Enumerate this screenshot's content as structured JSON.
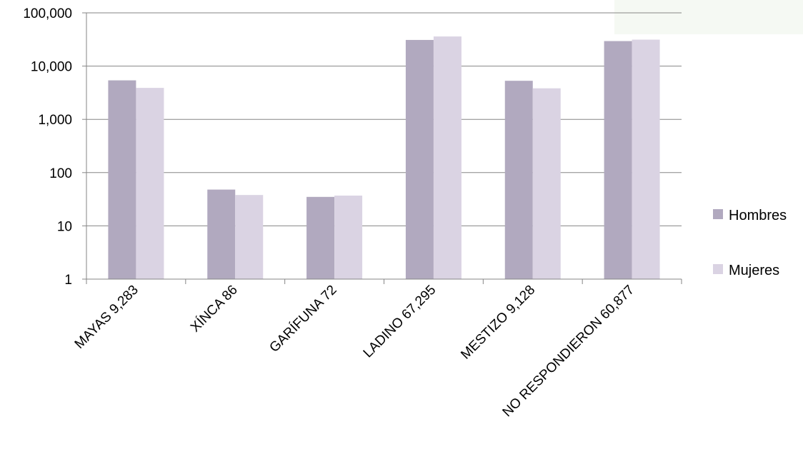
{
  "chart_data": {
    "type": "bar",
    "scale": "log",
    "ylim": [
      1,
      100000
    ],
    "y_ticks": [
      "100,000",
      "10,000",
      "1,000",
      "100",
      "10",
      "1"
    ],
    "y_tick_values": [
      100000,
      10000,
      1000,
      100,
      10,
      1
    ],
    "categories": [
      "MAYAS  9,283",
      "XÍNCA  86",
      "GARÍFUNA  72",
      "LADINO  67,295",
      "MESTIZO  9,128",
      "NO RESPONDIERON  60,877"
    ],
    "series": [
      {
        "name": "Hombres",
        "color": "#b1a9bf",
        "values": [
          5400,
          48,
          35,
          31000,
          5300,
          29500
        ]
      },
      {
        "name": "Mujeres",
        "color": "#dad3e3",
        "values": [
          3900,
          38,
          37,
          36000,
          3830,
          31400
        ]
      }
    ],
    "grid": true,
    "legend_position": "right"
  }
}
